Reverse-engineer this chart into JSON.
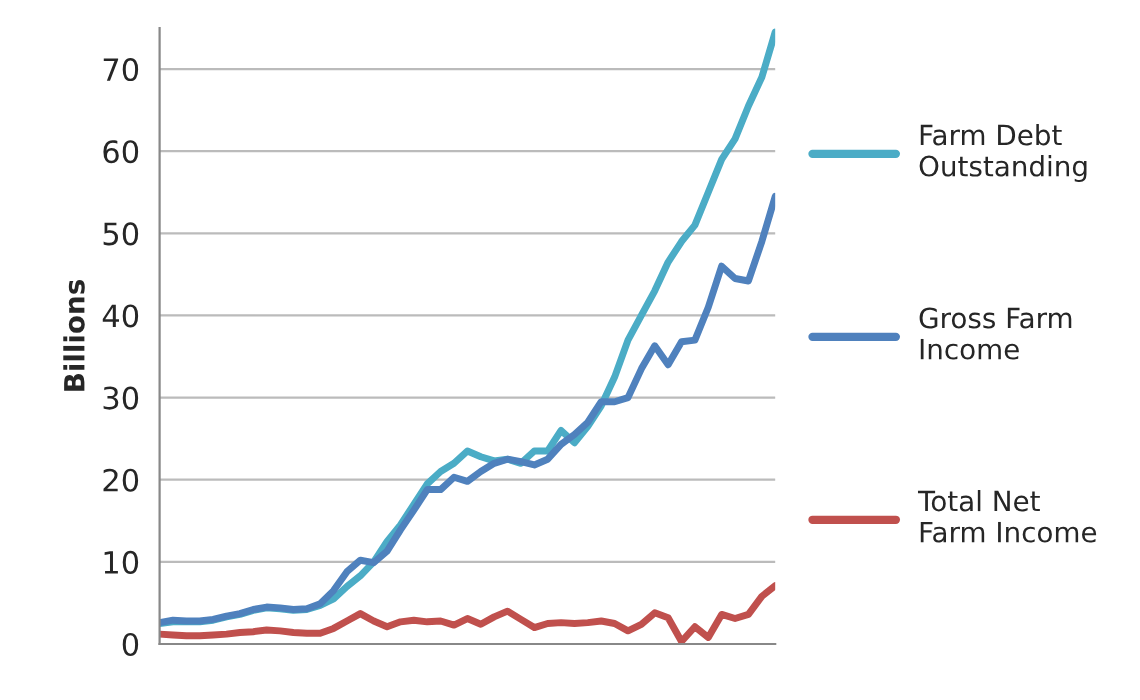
{
  "chart_data": {
    "type": "line",
    "ylabel": "Billions",
    "ylim": [
      0,
      75
    ],
    "yticks": [
      0,
      10,
      20,
      30,
      40,
      50,
      60,
      70
    ],
    "grid": "y",
    "legend": "right",
    "line_style": "solid",
    "marker": "none",
    "categories": [
      null,
      null,
      null,
      null,
      null,
      null,
      null,
      null,
      null,
      null,
      null,
      null,
      null,
      null,
      null,
      null,
      null,
      null,
      null,
      null,
      null,
      null,
      null,
      null,
      null,
      null,
      null,
      null,
      null,
      null,
      null,
      null,
      null,
      null,
      null,
      null,
      null,
      null,
      null,
      null,
      null,
      null,
      null,
      null,
      null,
      null,
      null
    ],
    "series": [
      {
        "name": "Farm Debt Outstanding",
        "color": "#4bacc6",
        "values": [
          2.5,
          2.7,
          2.7,
          2.7,
          2.9,
          3.3,
          3.6,
          4.1,
          4.4,
          4.3,
          4.1,
          4.2,
          4.7,
          5.5,
          7.0,
          8.3,
          10.0,
          12.5,
          14.5,
          17.0,
          19.5,
          21.0,
          22.0,
          23.5,
          22.8,
          22.3,
          22.5,
          22.0,
          23.5,
          23.5,
          26.0,
          24.5,
          26.5,
          29.0,
          32.5,
          37.0,
          40.0,
          43.0,
          46.5,
          49.0,
          51.0,
          55.0,
          59.0,
          61.5,
          65.5,
          69.0,
          74.5
        ]
      },
      {
        "name": "Gross Farm Income",
        "color": "#4f81bd",
        "values": [
          2.6,
          2.9,
          2.8,
          2.8,
          3.0,
          3.4,
          3.7,
          4.2,
          4.5,
          4.4,
          4.2,
          4.3,
          4.9,
          6.5,
          8.8,
          10.2,
          9.9,
          11.3,
          13.9,
          16.3,
          18.8,
          18.8,
          20.3,
          19.8,
          21.0,
          22.0,
          22.5,
          22.2,
          21.8,
          22.5,
          24.3,
          25.5,
          27.0,
          29.5,
          29.5,
          30.0,
          33.5,
          36.3,
          34.0,
          36.8,
          37.0,
          41.0,
          46.0,
          44.5,
          44.2,
          49.0,
          54.5
        ]
      },
      {
        "name": "Total Net Farm Income",
        "color": "#c0504d",
        "values": [
          1.2,
          1.1,
          1.0,
          1.0,
          1.1,
          1.2,
          1.4,
          1.5,
          1.7,
          1.6,
          1.4,
          1.3,
          1.3,
          1.9,
          2.8,
          3.7,
          2.8,
          2.1,
          2.7,
          2.9,
          2.7,
          2.8,
          2.3,
          3.1,
          2.4,
          3.3,
          4.0,
          3.0,
          2.0,
          2.5,
          2.6,
          2.5,
          2.6,
          2.8,
          2.5,
          1.6,
          2.4,
          3.8,
          3.2,
          0.3,
          2.1,
          0.8,
          3.6,
          3.1,
          3.6,
          5.8,
          7.1
        ]
      }
    ]
  }
}
